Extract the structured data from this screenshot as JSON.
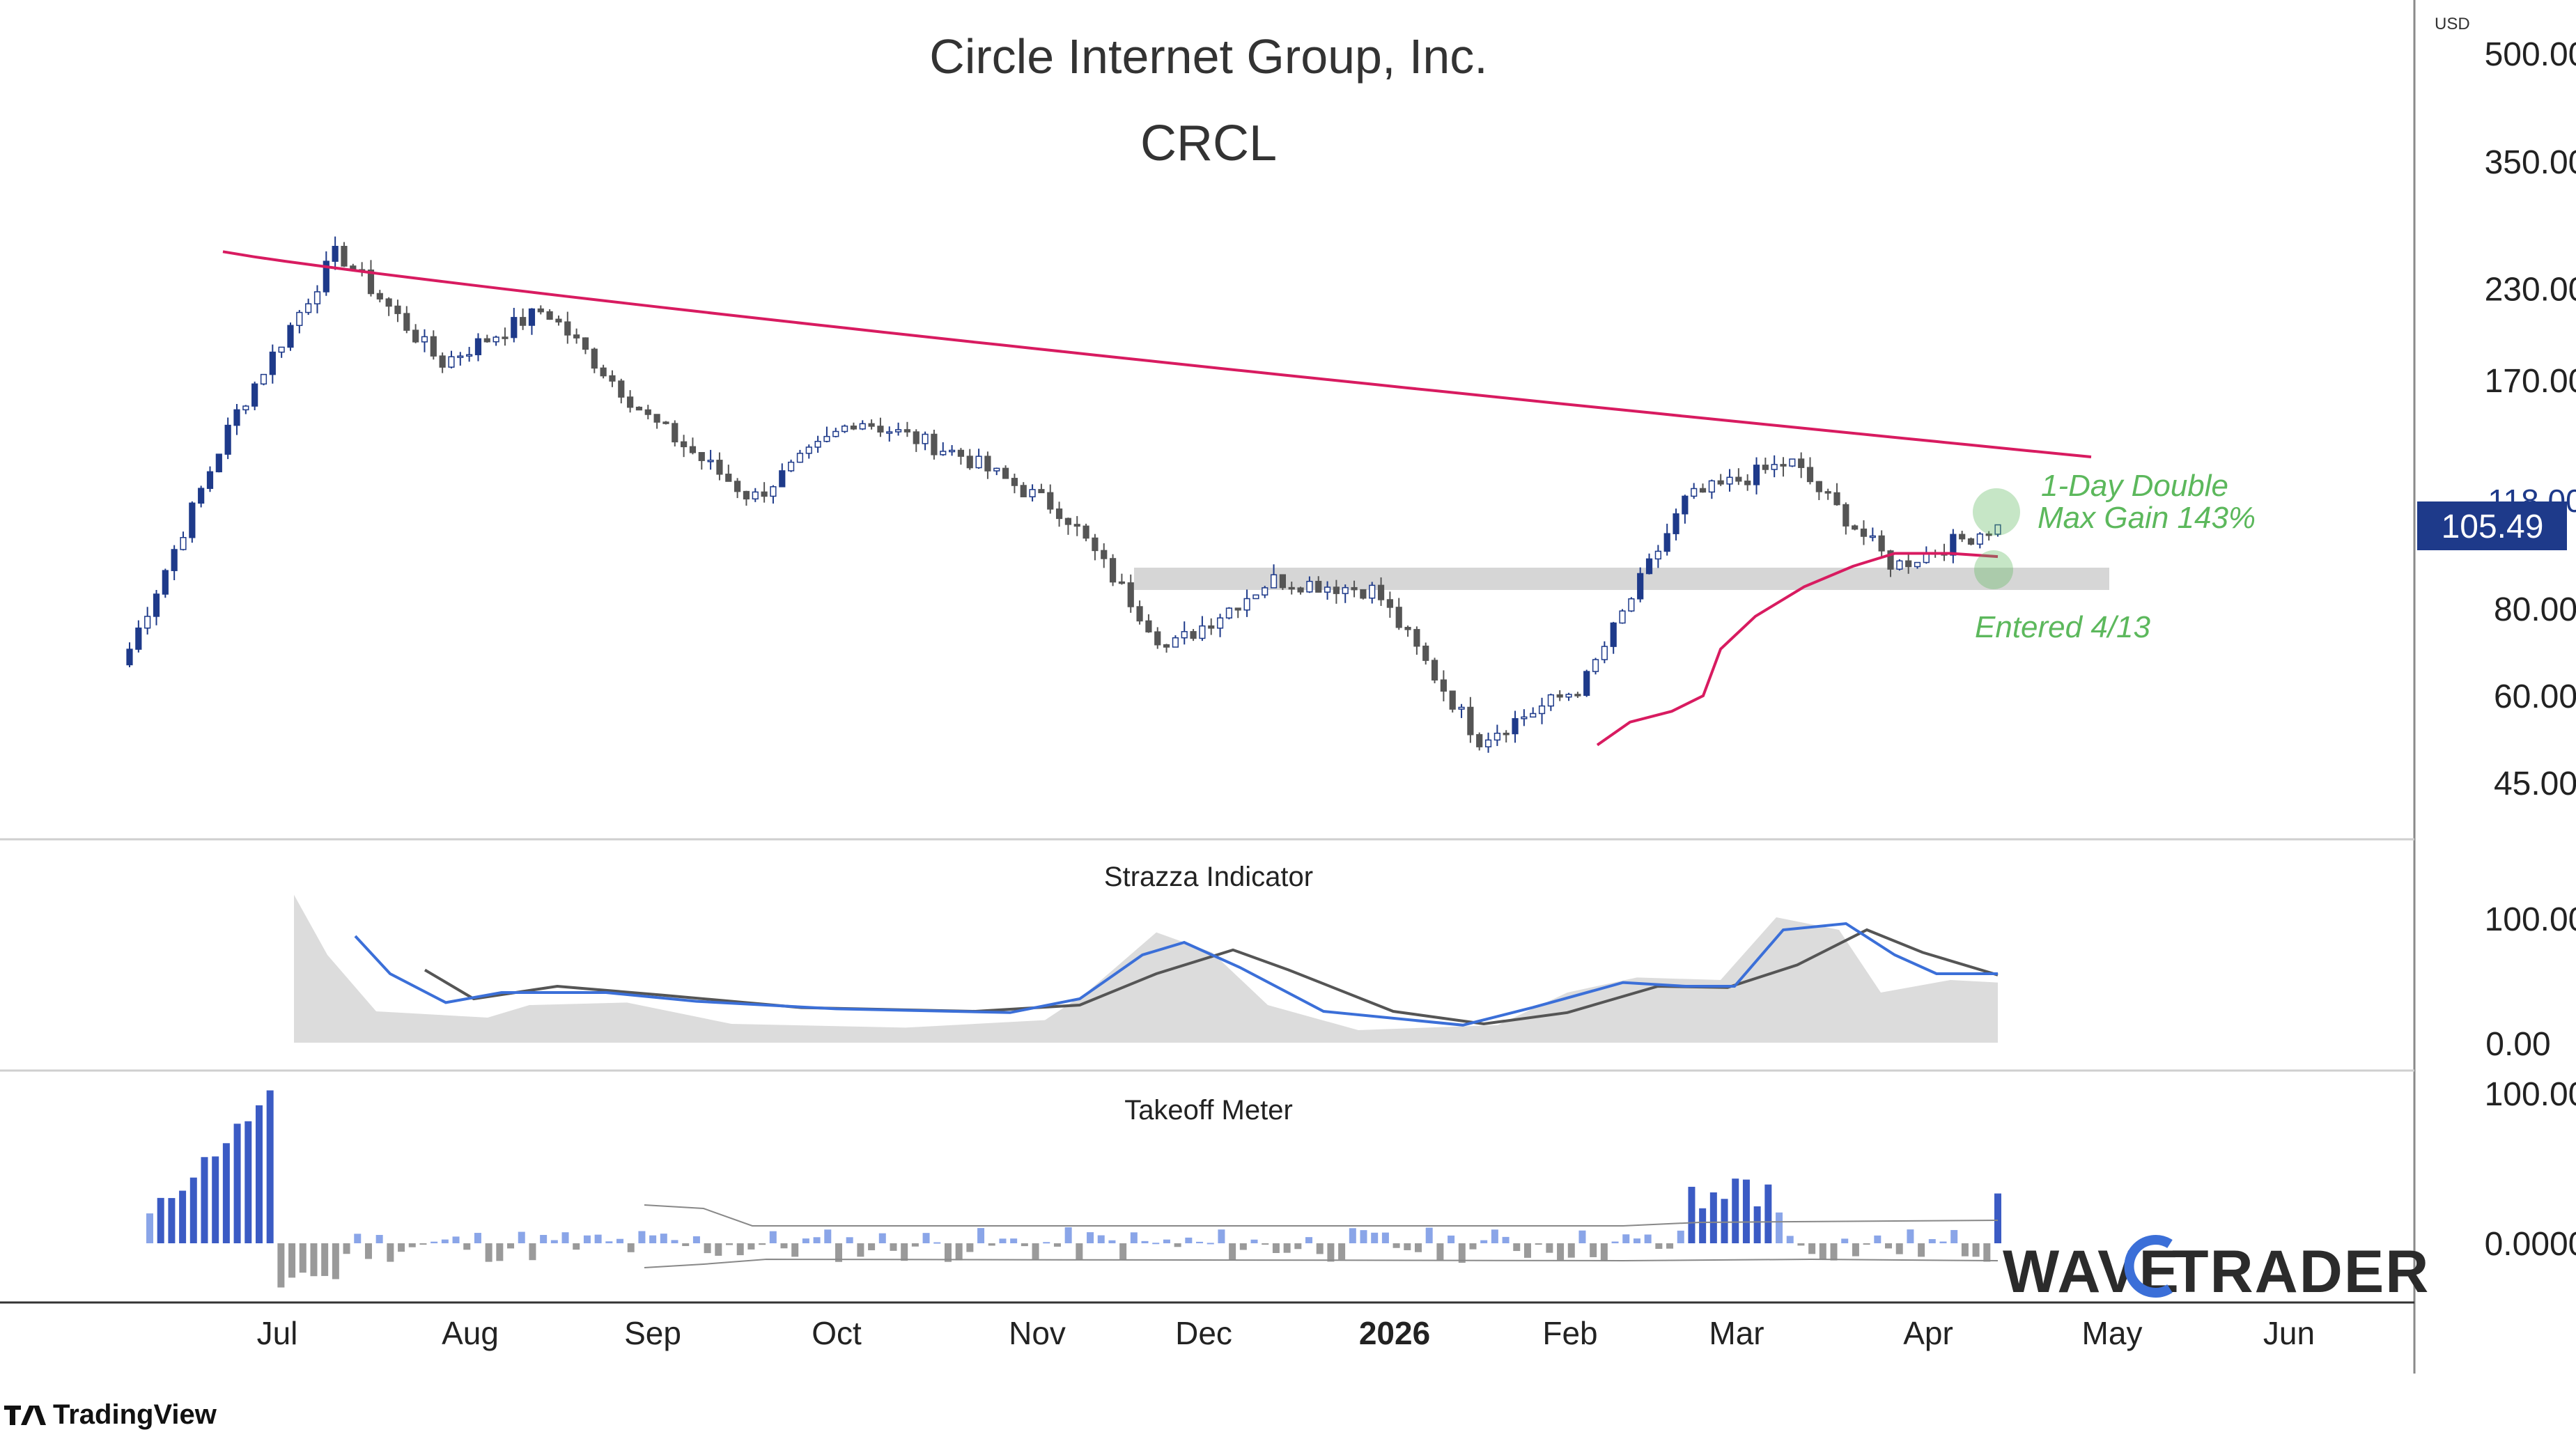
{
  "chart": {
    "title": "Circle Internet Group, Inc.",
    "ticker": "CRCL",
    "currency": "USD",
    "last_price": "105.49",
    "last_price_color": "#1e3a8a",
    "price_ticks": [
      "500.00",
      "350.00",
      "230.00",
      "170.00",
      "80.00",
      "60.00",
      "45.00"
    ],
    "hidden_tick": "118.00",
    "annotation_gain_line1": "1-Day Double",
    "annotation_gain_line2": "Max Gain 143%",
    "annotation_entry": "Entered 4/13",
    "annotation_color": "#5cb85c",
    "ma_color": "#d81b60",
    "up_color": "#ffffff",
    "down_color": "#555555",
    "highlight_color": "#1e3a8a",
    "month_labels": [
      "Jul",
      "Aug",
      "Sep",
      "Oct",
      "Nov",
      "Dec",
      "2026",
      "Feb",
      "Mar",
      "Apr",
      "May",
      "Jun"
    ]
  },
  "strazza": {
    "title": "Strazza Indicator",
    "ticks": [
      "100.00",
      "0.00"
    ],
    "fast_color": "#3b6fd8",
    "slow_color": "#555555",
    "area_color": "#dcdcdc"
  },
  "takeoff": {
    "title": "Takeoff Meter",
    "ticks": [
      "100.00",
      "0.0000"
    ],
    "pos_color": "#8aa5e8",
    "pos_strong_color": "#3b5bc4",
    "neg_color": "#9a9a9a"
  },
  "branding": {
    "wavetrader": "WAVETRADER",
    "tradingview": "TradingView"
  },
  "chart_data": {
    "type": "candlestick",
    "title": "Circle Internet Group, Inc.",
    "subtitle": "CRCL",
    "y_scale": "log",
    "y_ticks": [
      500,
      350,
      230,
      170,
      80,
      60,
      45
    ],
    "x_labels": [
      "Jul",
      "Aug",
      "Sep",
      "Oct",
      "Nov",
      "Dec",
      "2026",
      "Feb",
      "Mar",
      "Apr",
      "May",
      "Jun"
    ],
    "last_price": 105.49,
    "approx_close_path": [
      {
        "month": "Jun",
        "close": 70
      },
      {
        "month": "Jun",
        "close": 150
      },
      {
        "month": "Jul",
        "close": 260
      },
      {
        "month": "Jul",
        "close": 180
      },
      {
        "month": "Aug",
        "close": 215
      },
      {
        "month": "Aug",
        "close": 150
      },
      {
        "month": "Sep",
        "close": 115
      },
      {
        "month": "Oct",
        "close": 150
      },
      {
        "month": "Oct",
        "close": 133
      },
      {
        "month": "Nov",
        "close": 110
      },
      {
        "month": "Nov",
        "close": 70
      },
      {
        "month": "Dec",
        "close": 88
      },
      {
        "month": "2026",
        "close": 85
      },
      {
        "month": "Feb",
        "close": 52
      },
      {
        "month": "Feb",
        "close": 62
      },
      {
        "month": "Mar",
        "close": 115
      },
      {
        "month": "Mar",
        "close": 130
      },
      {
        "month": "Apr",
        "close": 92
      },
      {
        "month": "Apr",
        "close": 105.49
      }
    ],
    "support_zone": [
      88,
      93
    ],
    "indicators": [
      {
        "name": "Strazza Indicator",
        "range": [
          0,
          100
        ]
      },
      {
        "name": "Takeoff Meter",
        "range": [
          0,
          100
        ]
      }
    ]
  }
}
